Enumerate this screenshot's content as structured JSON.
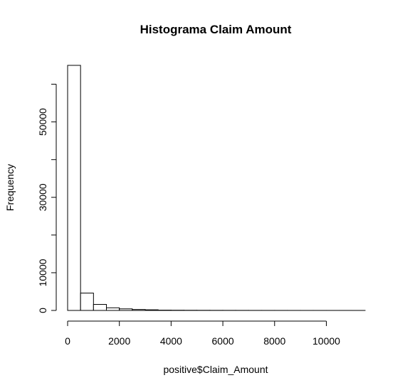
{
  "chart_data": {
    "type": "bar",
    "title": "Histograma Claim Amount",
    "xlabel": "positive$Claim_Amount",
    "ylabel": "Frequency",
    "x_ticks": [
      0,
      2000,
      4000,
      6000,
      8000,
      10000
    ],
    "y_ticks": [
      0,
      10000,
      30000,
      50000
    ],
    "xlim": [
      0,
      11500
    ],
    "ylim": [
      0,
      65000
    ],
    "bins": [
      {
        "start": 0,
        "end": 500,
        "count": 65000
      },
      {
        "start": 500,
        "end": 1000,
        "count": 4600
      },
      {
        "start": 1000,
        "end": 1500,
        "count": 1600
      },
      {
        "start": 1500,
        "end": 2000,
        "count": 700
      },
      {
        "start": 2000,
        "end": 2500,
        "count": 420
      },
      {
        "start": 2500,
        "end": 3000,
        "count": 250
      },
      {
        "start": 3000,
        "end": 3500,
        "count": 170
      },
      {
        "start": 3500,
        "end": 4000,
        "count": 80
      },
      {
        "start": 4000,
        "end": 4500,
        "count": 60
      },
      {
        "start": 4500,
        "end": 5000,
        "count": 45
      },
      {
        "start": 5000,
        "end": 5500,
        "count": 35
      },
      {
        "start": 5500,
        "end": 6000,
        "count": 28
      },
      {
        "start": 6000,
        "end": 6500,
        "count": 22
      },
      {
        "start": 6500,
        "end": 7000,
        "count": 18
      },
      {
        "start": 7000,
        "end": 7500,
        "count": 14
      },
      {
        "start": 7500,
        "end": 8000,
        "count": 11
      },
      {
        "start": 8000,
        "end": 8500,
        "count": 9
      },
      {
        "start": 8500,
        "end": 9000,
        "count": 7
      },
      {
        "start": 9000,
        "end": 9500,
        "count": 6
      },
      {
        "start": 9500,
        "end": 10000,
        "count": 5
      },
      {
        "start": 10000,
        "end": 10500,
        "count": 4
      },
      {
        "start": 10500,
        "end": 11000,
        "count": 3
      },
      {
        "start": 11000,
        "end": 11500,
        "count": 2
      }
    ],
    "grid": false,
    "colors": {
      "bar_fill": "#ffffff",
      "bar_stroke": "#000000",
      "background": "#ffffff"
    }
  }
}
